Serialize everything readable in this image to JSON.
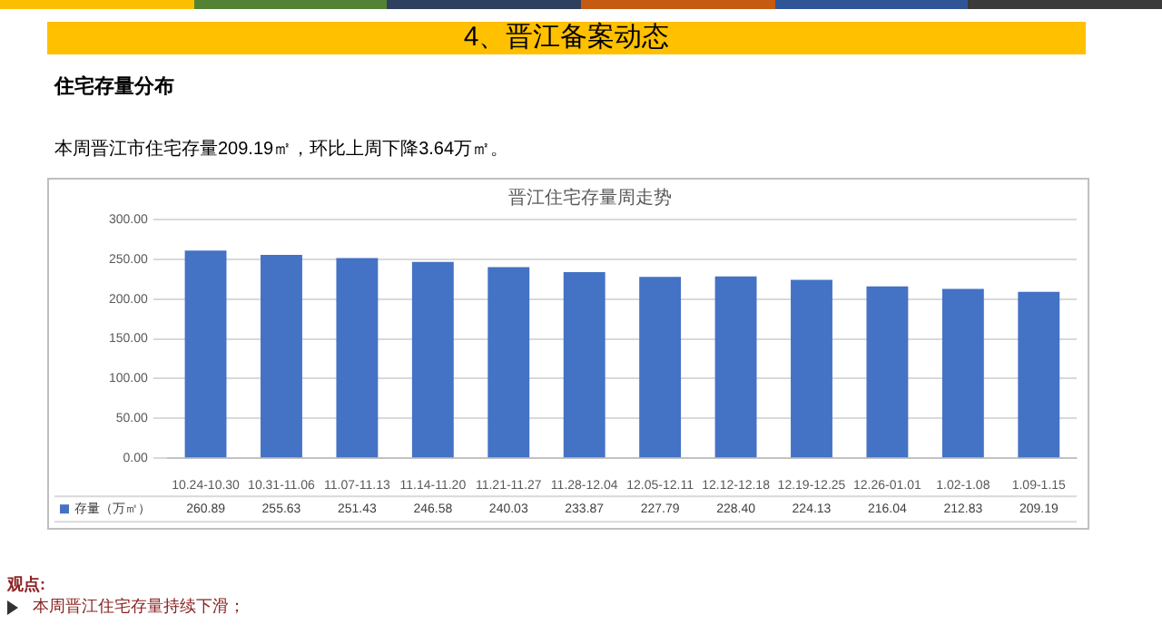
{
  "chart_data": {
    "type": "bar",
    "title": "晋江住宅存量周走势",
    "subtitle": "住宅存量分布",
    "annotations": [
      "4、晋江备案动态",
      "本周晋江市住宅存量209.19㎡，环比上周下降3.64万㎡。",
      "观点:",
      "本周晋江住宅存量持续下滑；"
    ],
    "categories": [
      "10.24-10.30",
      "10.31-11.06",
      "11.07-11.13",
      "11.14-11.20",
      "11.21-11.27",
      "11.28-12.04",
      "12.05-12.11",
      "12.12-12.18",
      "12.19-12.25",
      "12.26-01.01",
      "1.02-1.08",
      "1.09-1.15"
    ],
    "series": [
      {
        "name": "存量（万㎡）",
        "color": "#4472c4",
        "values": [
          260.89,
          255.63,
          251.43,
          246.58,
          240.03,
          233.87,
          227.79,
          228.4,
          224.13,
          216.04,
          212.83,
          209.19
        ],
        "value_labels": [
          "260.89",
          "255.63",
          "251.43",
          "246.58",
          "240.03",
          "233.87",
          "227.79",
          "228.40",
          "224.13",
          "216.04",
          "212.83",
          "209.19"
        ]
      }
    ],
    "ylim": [
      0,
      300
    ],
    "yticks": [
      {
        "value": 0,
        "label": "0.00"
      },
      {
        "value": 50,
        "label": "50.00"
      },
      {
        "value": 100,
        "label": "100.00"
      },
      {
        "value": 150,
        "label": "150.00"
      },
      {
        "value": 200,
        "label": "200.00"
      },
      {
        "value": 250,
        "label": "250.00"
      },
      {
        "value": 300,
        "label": "300.00"
      }
    ],
    "grid": "y"
  }
}
